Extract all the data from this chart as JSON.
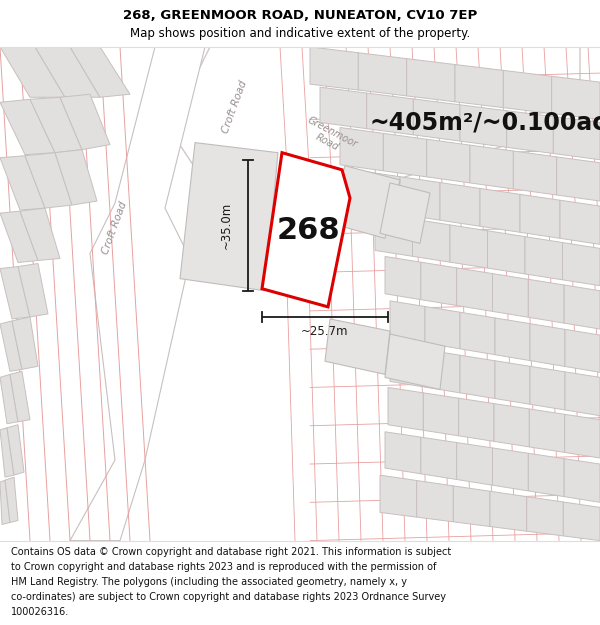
{
  "title_line1": "268, GREENMOOR ROAD, NUNEATON, CV10 7EP",
  "title_line2": "Map shows position and indicative extent of the property.",
  "area_text": "~405m²/~0.100ac.",
  "property_number": "268",
  "dim_vertical": "~35.0m",
  "dim_horizontal": "~25.7m",
  "footer_lines": [
    "Contains OS data © Crown copyright and database right 2021. This information is subject",
    "to Crown copyright and database rights 2023 and is reproduced with the permission of",
    "HM Land Registry. The polygons (including the associated geometry, namely x, y",
    "co-ordinates) are subject to Crown copyright and database rights 2023 Ordnance Survey",
    "100026316."
  ],
  "map_bg": "#f7f5f5",
  "building_fill": "#e2dfdf",
  "building_stroke": "#c8c0c0",
  "road_fill": "#ffffff",
  "boundary_color": "#e8a0a0",
  "highlight_stroke": "#dd0000",
  "highlight_fill": "#ffffff",
  "dim_color": "#1a1a1a",
  "road_label_color": "#999090",
  "title_fontsize": 9.5,
  "subtitle_fontsize": 8.5,
  "area_fontsize": 17,
  "number_fontsize": 22,
  "dim_fontsize": 8.5,
  "footer_fontsize": 7.0
}
